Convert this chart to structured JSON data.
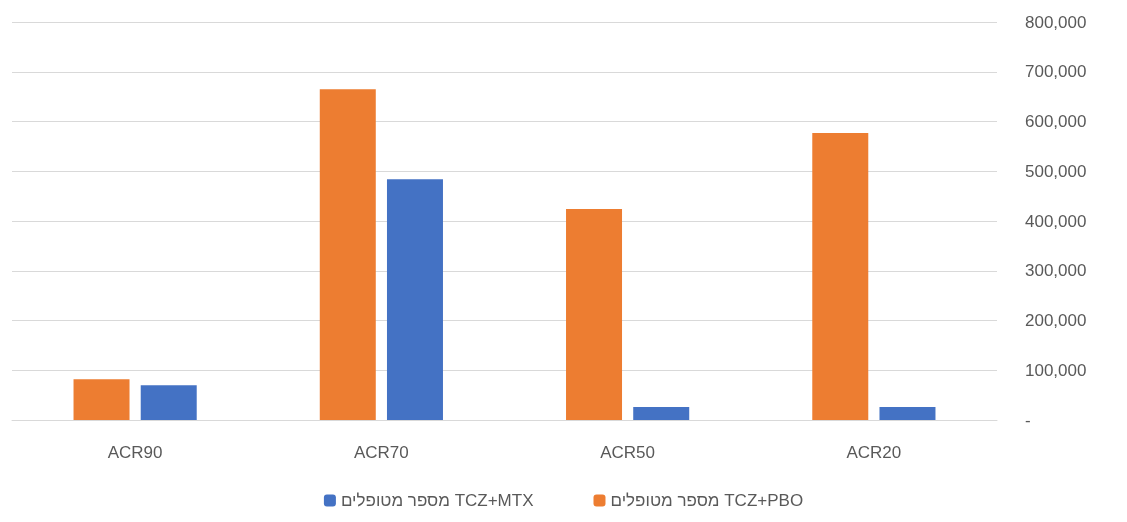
{
  "chart_data": {
    "type": "bar",
    "categories": [
      "ACR90",
      "ACR70",
      "ACR50",
      "ACR20"
    ],
    "series": [
      {
        "name": "מספר מטופלים TCZ+PBO",
        "color": "#ed7d31",
        "values": [
          82000,
          665000,
          424000,
          577000
        ]
      },
      {
        "name": "מספר מטופלים TCZ+MTX",
        "color": "#4472c4",
        "values": [
          70000,
          484000,
          26000,
          26000
        ]
      }
    ],
    "ylim": [
      0,
      800000
    ],
    "yticks": [
      {
        "value": 0,
        "label": "-"
      },
      {
        "value": 100000,
        "label": "100,000"
      },
      {
        "value": 200000,
        "label": "200,000"
      },
      {
        "value": 300000,
        "label": "300,000"
      },
      {
        "value": 400000,
        "label": "400,000"
      },
      {
        "value": 500000,
        "label": "500,000"
      },
      {
        "value": 600000,
        "label": "600,000"
      },
      {
        "value": 700000,
        "label": "700,000"
      },
      {
        "value": 800000,
        "label": "800,000"
      }
    ],
    "grid": "y",
    "legend": "bottom"
  }
}
